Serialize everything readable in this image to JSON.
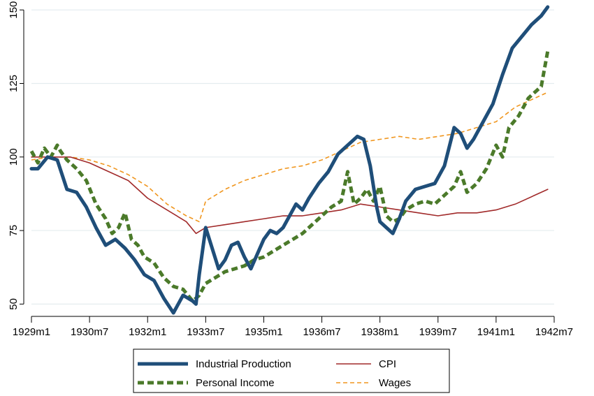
{
  "chart_data": {
    "type": "line",
    "title": "",
    "xlabel": "",
    "ylabel": "",
    "ylim": [
      47,
      151
    ],
    "xlim": [
      "1929m1",
      "1942m7"
    ],
    "grid": true,
    "legend_position": "bottom",
    "x_ticks": [
      "1929m1",
      "1930m7",
      "1932m1",
      "1933m7",
      "1935m1",
      "1936m7",
      "1938m1",
      "1939m7",
      "1941m1",
      "1942m7"
    ],
    "y_ticks": [
      50,
      75,
      100,
      125,
      150
    ],
    "series": [
      {
        "name": "Industrial Production",
        "color": "#1f4e79",
        "style": "solid-thick",
        "points": [
          [
            "1929m1",
            96
          ],
          [
            "1929m3",
            96
          ],
          [
            "1929m6",
            100
          ],
          [
            "1929m9",
            99
          ],
          [
            "1929m12",
            89
          ],
          [
            "1930m3",
            88
          ],
          [
            "1930m6",
            83
          ],
          [
            "1930m9",
            76
          ],
          [
            "1930m12",
            70
          ],
          [
            "1931m3",
            72
          ],
          [
            "1931m6",
            69
          ],
          [
            "1931m9",
            65
          ],
          [
            "1931m12",
            60
          ],
          [
            "1932m3",
            58
          ],
          [
            "1932m6",
            52
          ],
          [
            "1932m9",
            47
          ],
          [
            "1932m12",
            53
          ],
          [
            "1933m3",
            51
          ],
          [
            "1933m4",
            50
          ],
          [
            "1933m5",
            60
          ],
          [
            "1933m7",
            76
          ],
          [
            "1933m9",
            69
          ],
          [
            "1933m11",
            62
          ],
          [
            "1934m1",
            65
          ],
          [
            "1934m3",
            70
          ],
          [
            "1934m5",
            71
          ],
          [
            "1934m7",
            66
          ],
          [
            "1934m9",
            62
          ],
          [
            "1934m11",
            67
          ],
          [
            "1935m1",
            72
          ],
          [
            "1935m3",
            75
          ],
          [
            "1935m5",
            74
          ],
          [
            "1935m7",
            76
          ],
          [
            "1935m9",
            80
          ],
          [
            "1935m11",
            84
          ],
          [
            "1936m1",
            82
          ],
          [
            "1936m3",
            86
          ],
          [
            "1936m6",
            91
          ],
          [
            "1936m9",
            95
          ],
          [
            "1936m12",
            101
          ],
          [
            "1937m3",
            104
          ],
          [
            "1937m6",
            107
          ],
          [
            "1937m8",
            106
          ],
          [
            "1937m10",
            97
          ],
          [
            "1937m12",
            83
          ],
          [
            "1938m1",
            78
          ],
          [
            "1938m3",
            76
          ],
          [
            "1938m5",
            74
          ],
          [
            "1938m7",
            79
          ],
          [
            "1938m9",
            85
          ],
          [
            "1938m12",
            89
          ],
          [
            "1939m3",
            90
          ],
          [
            "1939m6",
            91
          ],
          [
            "1939m9",
            97
          ],
          [
            "1939m12",
            110
          ],
          [
            "1940m2",
            108
          ],
          [
            "1940m4",
            103
          ],
          [
            "1940m6",
            106
          ],
          [
            "1940m9",
            112
          ],
          [
            "1940m12",
            118
          ],
          [
            "1941m3",
            128
          ],
          [
            "1941m6",
            137
          ],
          [
            "1941m9",
            141
          ],
          [
            "1941m12",
            145
          ],
          [
            "1942m3",
            148
          ],
          [
            "1942m5",
            151
          ]
        ]
      },
      {
        "name": "Personal Income",
        "color": "#4b7a2a",
        "style": "dashed-thick",
        "points": [
          [
            "1929m1",
            102
          ],
          [
            "1929m3",
            98
          ],
          [
            "1929m5",
            103
          ],
          [
            "1929m7",
            100
          ],
          [
            "1929m9",
            104
          ],
          [
            "1929m10",
            102
          ],
          [
            "1929m12",
            99
          ],
          [
            "1930m3",
            96
          ],
          [
            "1930m6",
            92
          ],
          [
            "1930m9",
            84
          ],
          [
            "1930m12",
            79
          ],
          [
            "1931m2",
            74
          ],
          [
            "1931m4",
            76
          ],
          [
            "1931m6",
            81
          ],
          [
            "1931m8",
            72
          ],
          [
            "1931m10",
            70
          ],
          [
            "1931m12",
            66
          ],
          [
            "1932m3",
            64
          ],
          [
            "1932m6",
            59
          ],
          [
            "1932m9",
            56
          ],
          [
            "1932m12",
            55
          ],
          [
            "1933m3",
            51
          ],
          [
            "1933m5",
            53
          ],
          [
            "1933m7",
            57
          ],
          [
            "1933m10",
            59
          ],
          [
            "1934m1",
            61
          ],
          [
            "1934m4",
            62
          ],
          [
            "1934m7",
            63
          ],
          [
            "1934m10",
            65
          ],
          [
            "1935m1",
            66
          ],
          [
            "1935m4",
            68
          ],
          [
            "1935m7",
            70
          ],
          [
            "1935m10",
            72
          ],
          [
            "1936m1",
            74
          ],
          [
            "1936m4",
            77
          ],
          [
            "1936m7",
            80
          ],
          [
            "1936m10",
            83
          ],
          [
            "1937m1",
            85
          ],
          [
            "1937m3",
            95
          ],
          [
            "1937m5",
            84
          ],
          [
            "1937m7",
            86
          ],
          [
            "1937m9",
            89
          ],
          [
            "1937m11",
            85
          ],
          [
            "1938m1",
            90
          ],
          [
            "1938m3",
            80
          ],
          [
            "1938m5",
            78
          ],
          [
            "1938m7",
            79
          ],
          [
            "1938m9",
            82
          ],
          [
            "1938m12",
            84
          ],
          [
            "1939m3",
            85
          ],
          [
            "1939m6",
            84
          ],
          [
            "1939m9",
            87
          ],
          [
            "1939m12",
            90
          ],
          [
            "1940m2",
            95
          ],
          [
            "1940m4",
            88
          ],
          [
            "1940m7",
            91
          ],
          [
            "1940m10",
            96
          ],
          [
            "1941m1",
            104
          ],
          [
            "1941m3",
            100
          ],
          [
            "1941m5",
            110
          ],
          [
            "1941m8",
            114
          ],
          [
            "1941m11",
            120
          ],
          [
            "1942m1",
            122
          ],
          [
            "1942m3",
            124
          ],
          [
            "1942m5",
            136
          ]
        ]
      },
      {
        "name": "CPI",
        "color": "#a12a2a",
        "style": "solid-thin",
        "points": [
          [
            "1929m1",
            100
          ],
          [
            "1929m7",
            100
          ],
          [
            "1930m1",
            100
          ],
          [
            "1930m7",
            98
          ],
          [
            "1931m1",
            95
          ],
          [
            "1931m7",
            92
          ],
          [
            "1932m1",
            86
          ],
          [
            "1932m7",
            82
          ],
          [
            "1933m1",
            78
          ],
          [
            "1933m4",
            74
          ],
          [
            "1933m7",
            76
          ],
          [
            "1934m1",
            77
          ],
          [
            "1934m7",
            78
          ],
          [
            "1935m1",
            79
          ],
          [
            "1935m7",
            80
          ],
          [
            "1936m1",
            80
          ],
          [
            "1936m7",
            81
          ],
          [
            "1937m1",
            82
          ],
          [
            "1937m7",
            84
          ],
          [
            "1938m1",
            83
          ],
          [
            "1938m7",
            82
          ],
          [
            "1939m1",
            81
          ],
          [
            "1939m7",
            80
          ],
          [
            "1940m1",
            81
          ],
          [
            "1940m7",
            81
          ],
          [
            "1941m1",
            82
          ],
          [
            "1941m7",
            84
          ],
          [
            "1942m1",
            87
          ],
          [
            "1942m5",
            89
          ]
        ]
      },
      {
        "name": "Wages",
        "color": "#f0961e",
        "style": "dashed-thin",
        "points": [
          [
            "1929m1",
            99
          ],
          [
            "1929m7",
            100
          ],
          [
            "1930m1",
            100
          ],
          [
            "1930m7",
            99
          ],
          [
            "1931m1",
            97
          ],
          [
            "1931m7",
            94
          ],
          [
            "1932m1",
            90
          ],
          [
            "1932m7",
            84
          ],
          [
            "1933m1",
            80
          ],
          [
            "1933m5",
            78
          ],
          [
            "1933m7",
            85
          ],
          [
            "1934m1",
            89
          ],
          [
            "1934m7",
            92
          ],
          [
            "1935m1",
            94
          ],
          [
            "1935m7",
            96
          ],
          [
            "1936m1",
            97
          ],
          [
            "1936m7",
            99
          ],
          [
            "1937m1",
            102
          ],
          [
            "1937m7",
            105
          ],
          [
            "1938m1",
            106
          ],
          [
            "1938m7",
            107
          ],
          [
            "1939m1",
            106
          ],
          [
            "1939m7",
            107
          ],
          [
            "1940m1",
            108
          ],
          [
            "1940m7",
            110
          ],
          [
            "1941m1",
            112
          ],
          [
            "1941m7",
            117
          ],
          [
            "1942m1",
            120
          ],
          [
            "1942m5",
            122
          ]
        ]
      }
    ]
  },
  "legend": {
    "items": [
      {
        "label": "Industrial Production",
        "series": "Industrial Production"
      },
      {
        "label": "CPI",
        "series": "CPI"
      },
      {
        "label": "Personal Income",
        "series": "Personal Income"
      },
      {
        "label": "Wages",
        "series": "Wages"
      }
    ]
  }
}
